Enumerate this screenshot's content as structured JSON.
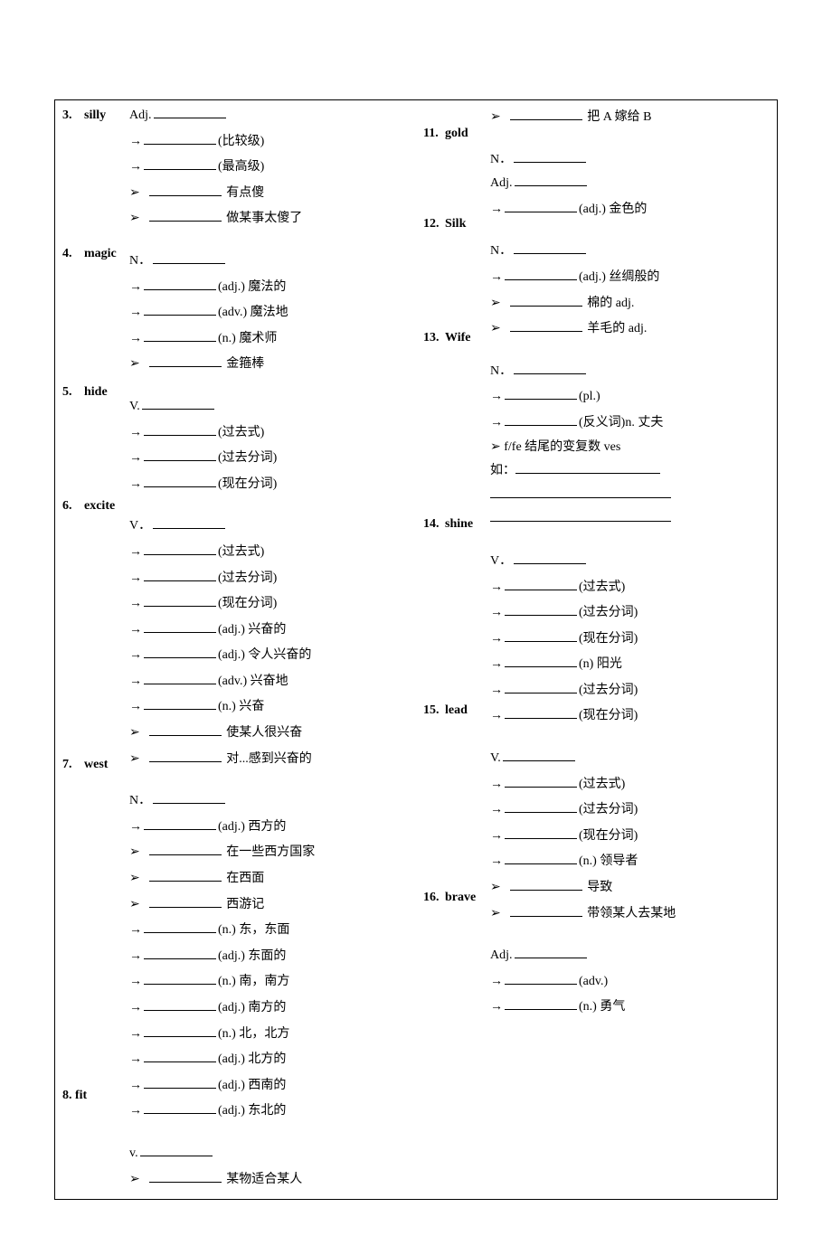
{
  "left": {
    "entries": [
      {
        "num": "3.",
        "word": "silly",
        "lines": [
          {
            "t": "pos",
            "label": "Adj."
          },
          {
            "t": "arrow",
            "suffix": "(比较级)"
          },
          {
            "t": "arrow",
            "suffix": "(最高级)"
          },
          {
            "t": "bullet",
            "suffix": "有点傻"
          },
          {
            "t": "bullet",
            "suffix": "做某事太傻了"
          }
        ]
      },
      {
        "num": "4.",
        "word": "magic",
        "lines": [
          {
            "t": "pos",
            "label": "N．"
          },
          {
            "t": "arrow",
            "suffix": "(adj.) 魔法的"
          },
          {
            "t": "arrow",
            "suffix": "(adv.) 魔法地"
          },
          {
            "t": "arrow",
            "suffix": "(n.) 魔术师"
          },
          {
            "t": "bullet",
            "suffix": "金箍棒"
          }
        ]
      },
      {
        "num": "5.",
        "word": "hide",
        "lines": [
          {
            "t": "pos",
            "label": "V."
          },
          {
            "t": "arrow",
            "suffix": "(过去式)"
          },
          {
            "t": "arrow",
            "suffix": "(过去分词)"
          },
          {
            "t": "arrow",
            "suffix": "(现在分词)"
          }
        ]
      },
      {
        "num": "6.",
        "word": "excite",
        "lines": [
          {
            "t": "pos",
            "label": "V．"
          },
          {
            "t": "arrow",
            "suffix": "(过去式)"
          },
          {
            "t": "arrow",
            "suffix": "(过去分词)"
          },
          {
            "t": "arrow",
            "suffix": "(现在分词)"
          },
          {
            "t": "arrow",
            "suffix": "(adj.) 兴奋的"
          },
          {
            "t": "arrow",
            "suffix": "(adj.) 令人兴奋的"
          },
          {
            "t": "arrow",
            "suffix": "(adv.) 兴奋地"
          },
          {
            "t": "arrow",
            "suffix": "(n.) 兴奋"
          },
          {
            "t": "bullet",
            "suffix": "使某人很兴奋"
          },
          {
            "t": "bullet",
            "suffix": "对...感到兴奋的"
          }
        ]
      },
      {
        "num": "7.",
        "word": "west",
        "lines": [
          {
            "t": "pos",
            "label": "N．"
          },
          {
            "t": "arrow",
            "suffix": "(adj.) 西方的"
          },
          {
            "t": "bullet",
            "suffix": "在一些西方国家"
          },
          {
            "t": "bullet",
            "suffix": "在西面"
          },
          {
            "t": "bullet",
            "suffix": "西游记"
          },
          {
            "t": "arrow",
            "suffix": "(n.) 东，东面"
          },
          {
            "t": "arrow",
            "suffix": "(adj.) 东面的"
          },
          {
            "t": "arrow",
            "suffix": "(n.) 南，南方"
          },
          {
            "t": "arrow",
            "suffix": "(adj.) 南方的"
          },
          {
            "t": "arrow",
            "suffix": "(n.) 北，北方"
          },
          {
            "t": "arrow",
            "suffix": "(adj.) 北方的"
          },
          {
            "t": "arrow",
            "suffix": "(adj.) 西南的"
          },
          {
            "t": "arrow",
            "suffix": "(adj.) 东北的"
          }
        ]
      },
      {
        "num": "8.",
        "word": "fit",
        "flat": true,
        "lines": [
          {
            "t": "pos",
            "label": "v."
          },
          {
            "t": "bullet",
            "suffix": "某物适合某人"
          }
        ]
      }
    ]
  },
  "right": {
    "entries": [
      {
        "num": "",
        "word": "",
        "lines": [
          {
            "t": "bullet",
            "suffix": "把 A 嫁给 B"
          }
        ]
      },
      {
        "num": "11.",
        "word": "gold",
        "lines": [
          {
            "t": "pos",
            "label": "N．"
          },
          {
            "t": "pos",
            "label": "Adj."
          },
          {
            "t": "arrow",
            "suffix": "(adj.) 金色的"
          }
        ]
      },
      {
        "num": "12.",
        "word": "Silk",
        "lines": [
          {
            "t": "pos",
            "label": "N．"
          },
          {
            "t": "arrow",
            "suffix": "(adj.) 丝绸般的"
          },
          {
            "t": "bullet",
            "suffix": "棉的 adj."
          },
          {
            "t": "bullet",
            "suffix": "羊毛的 adj."
          }
        ]
      },
      {
        "num": "13.",
        "word": "Wife",
        "lines": [
          {
            "t": "pos",
            "label": "N．"
          },
          {
            "t": "arrow",
            "suffix": "(pl.)"
          },
          {
            "t": "arrow",
            "suffix": "(反义词)n. 丈夫"
          },
          {
            "t": "text",
            "text": "➢   f/fe 结尾的变复数 ves"
          },
          {
            "t": "textblank",
            "prefix": "如：",
            "long": true
          },
          {
            "t": "fullblank"
          },
          {
            "t": "fullblank"
          }
        ]
      },
      {
        "num": "14.",
        "word": "shine",
        "lines": [
          {
            "t": "pos",
            "label": "V．"
          },
          {
            "t": "arrow",
            "suffix": "(过去式)"
          },
          {
            "t": "arrow",
            "suffix": "(过去分词)"
          },
          {
            "t": "arrow",
            "suffix": "(现在分词)"
          },
          {
            "t": "arrow",
            "suffix": "(n) 阳光"
          },
          {
            "t": "arrow",
            "suffix": "(过去分词)"
          },
          {
            "t": "arrow",
            "suffix": "(现在分词)"
          }
        ]
      },
      {
        "num": "15.",
        "word": "lead",
        "lines": [
          {
            "t": "pos",
            "label": "V."
          },
          {
            "t": "arrow",
            "suffix": "(过去式)"
          },
          {
            "t": "arrow",
            "suffix": "(过去分词)"
          },
          {
            "t": "arrow",
            "suffix": "(现在分词)"
          },
          {
            "t": "arrow",
            "suffix": "(n.) 领导者"
          },
          {
            "t": "bullet",
            "suffix": "导致"
          },
          {
            "t": "bullet",
            "suffix": "带领某人去某地"
          }
        ]
      },
      {
        "num": "16.",
        "word": "brave",
        "lines": [
          {
            "t": "pos",
            "label": "Adj."
          },
          {
            "t": "arrow",
            "suffix": "(adv.)"
          },
          {
            "t": "arrow",
            "suffix": "(n.) 勇气"
          }
        ]
      }
    ]
  }
}
